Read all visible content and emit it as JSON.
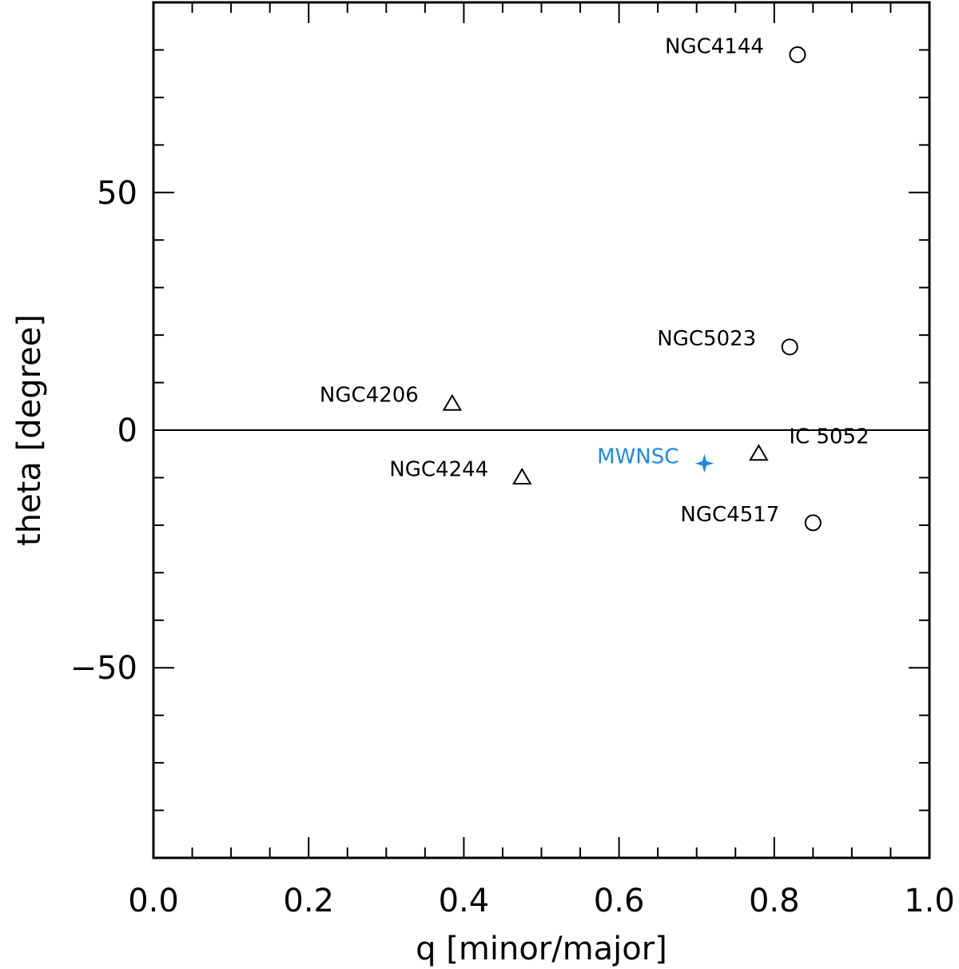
{
  "chart_data": {
    "type": "scatter",
    "title": "",
    "xlabel": "q [minor/major]",
    "ylabel": "theta [degree]",
    "xlim": [
      0.0,
      1.0
    ],
    "ylim": [
      -90,
      90
    ],
    "xticks": [
      0.0,
      0.2,
      0.4,
      0.6,
      0.8,
      1.0
    ],
    "xtick_labels": [
      "0.0",
      "0.2",
      "0.4",
      "0.6",
      "0.8",
      "1.0"
    ],
    "yticks": [
      -50,
      0,
      50
    ],
    "ytick_labels": [
      "−50",
      "0",
      "50"
    ],
    "x_minor_step": 0.05,
    "y_minor_step": 10,
    "reference_line_y": 0,
    "grid": false,
    "colors": {
      "default": "#000000",
      "highlight": "#1e88e5"
    },
    "points": [
      {
        "label": "NGC4144",
        "x": 0.83,
        "y": 79,
        "marker": "circle",
        "color": "#000000"
      },
      {
        "label": "NGC5023",
        "x": 0.82,
        "y": 17.5,
        "marker": "circle",
        "color": "#000000"
      },
      {
        "label": "NGC4206",
        "x": 0.385,
        "y": 5.5,
        "marker": "triangle",
        "color": "#000000"
      },
      {
        "label": "IC 5052",
        "x": 0.78,
        "y": -5,
        "marker": "triangle",
        "color": "#000000"
      },
      {
        "label": "MWNSC",
        "x": 0.71,
        "y": -7,
        "marker": "star",
        "color": "#1e88e5"
      },
      {
        "label": "NGC4244",
        "x": 0.475,
        "y": -10,
        "marker": "triangle",
        "color": "#000000"
      },
      {
        "label": "NGC4517",
        "x": 0.85,
        "y": -19.5,
        "marker": "circle",
        "color": "#000000"
      }
    ]
  }
}
